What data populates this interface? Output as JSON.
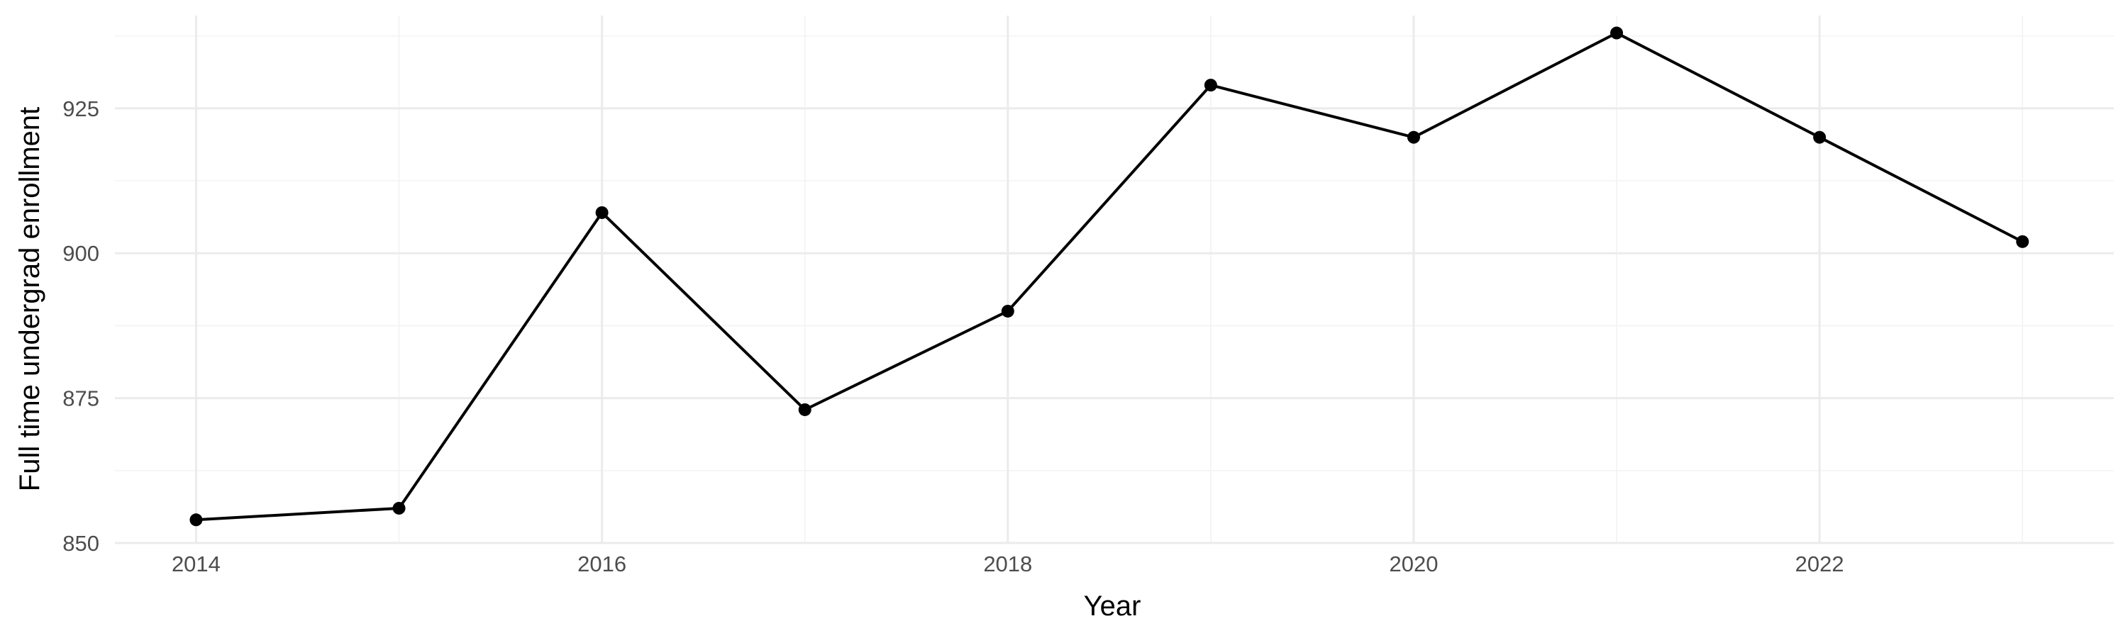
{
  "chart_data": {
    "type": "line",
    "title": "",
    "xlabel": "Year",
    "ylabel": "Full time undergrad enrollment",
    "x": [
      2014,
      2015,
      2016,
      2017,
      2018,
      2019,
      2020,
      2021,
      2022,
      2023
    ],
    "series": [
      {
        "values": [
          854,
          856,
          907,
          873,
          890,
          929,
          920,
          938,
          920,
          902
        ]
      }
    ],
    "xlim": [
      2013.6,
      2023.45
    ],
    "ylim": [
      850,
      941
    ],
    "x_ticks": [
      2014,
      2016,
      2018,
      2020,
      2022
    ],
    "x_tick_labels": [
      "2014",
      "2016",
      "2018",
      "2020",
      "2022"
    ],
    "y_ticks": [
      850,
      875,
      900,
      925
    ],
    "y_tick_labels": [
      "850",
      "875",
      "900",
      "925"
    ],
    "grid": true,
    "legend": "none",
    "colors": {
      "line": "#000000",
      "points": "#000000",
      "grid_major": "#ebebeb",
      "grid_minor": "#f3f3f3",
      "tick_text": "#4d4d4d"
    }
  }
}
